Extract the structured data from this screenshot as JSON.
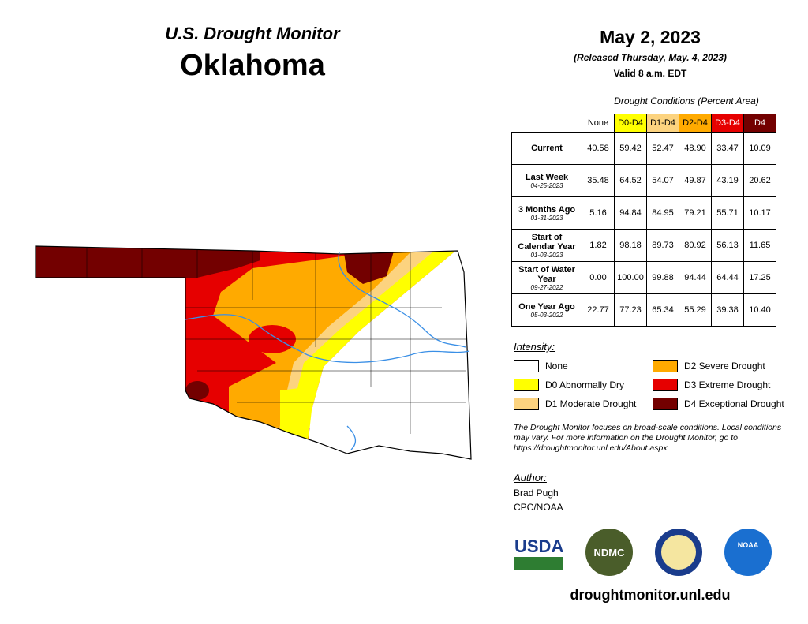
{
  "header": {
    "title": "U.S. Drought Monitor",
    "state": "Oklahoma",
    "date": "May 2, 2023",
    "released": "(Released Thursday, May. 4, 2023)",
    "valid": "Valid 8 a.m. EDT"
  },
  "table": {
    "caption": "Drought Conditions (Percent Area)",
    "columns": [
      "None",
      "D0-D4",
      "D1-D4",
      "D2-D4",
      "D3-D4",
      "D4"
    ],
    "rows": [
      {
        "label": "Current",
        "values": [
          "40.58",
          "59.42",
          "52.47",
          "48.90",
          "33.47",
          "10.09"
        ]
      },
      {
        "label": "Last Week",
        "date": "04-25-2023",
        "values": [
          "35.48",
          "64.52",
          "54.07",
          "49.87",
          "43.19",
          "20.62"
        ]
      },
      {
        "label": "3 Months Ago",
        "date": "01-31-2023",
        "values": [
          "5.16",
          "94.84",
          "84.95",
          "79.21",
          "55.71",
          "10.17"
        ]
      },
      {
        "label": "Start of Calendar Year",
        "date": "01-03-2023",
        "values": [
          "1.82",
          "98.18",
          "89.73",
          "80.92",
          "56.13",
          "11.65"
        ]
      },
      {
        "label": "Start of Water Year",
        "date": "09-27-2022",
        "values": [
          "0.00",
          "100.00",
          "99.88",
          "94.44",
          "64.44",
          "17.25"
        ]
      },
      {
        "label": "One Year Ago",
        "date": "05-03-2022",
        "values": [
          "22.77",
          "77.23",
          "65.34",
          "55.29",
          "39.38",
          "10.40"
        ]
      }
    ]
  },
  "legend": {
    "title": "Intensity:",
    "items": [
      "None",
      "D0 Abnormally Dry",
      "D1 Moderate Drought",
      "D2 Severe Drought",
      "D3 Extreme Drought",
      "D4 Exceptional Drought"
    ]
  },
  "note": "The Drought Monitor focuses on broad-scale conditions. Local conditions may vary. For more information on the Drought Monitor, go to https://droughtmonitor.unl.edu/About.aspx",
  "author": {
    "title": "Author:",
    "name": "Brad Pugh",
    "org": "CPC/NOAA"
  },
  "logos": [
    "USDA",
    "NDMC",
    "NOAA"
  ],
  "footer": "droughtmonitor.unl.edu"
}
